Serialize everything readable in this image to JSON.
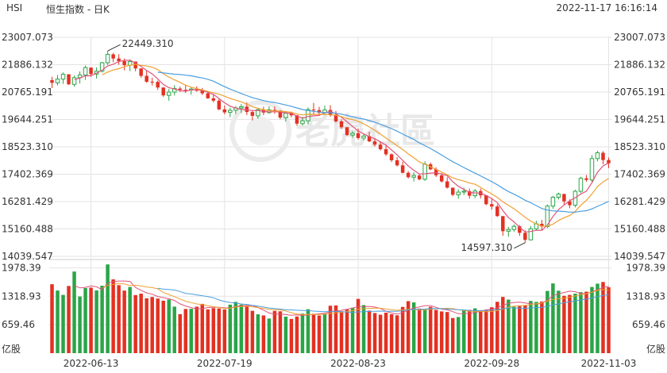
{
  "header": {
    "symbol": "HSI",
    "title": "恒生指数 - 日K",
    "timestamp": "2022-11-17 16:16:14"
  },
  "watermark": {
    "text": "老虎社區"
  },
  "colors": {
    "up": "#2aa547",
    "down": "#e33122",
    "ma5": "#e0537a",
    "ma10": "#f0a030",
    "ma20": "#4a9fe0",
    "grid": "#e3e3e3"
  },
  "chart_data": [
    {
      "type": "candlestick",
      "y_ticks": [
        "23007.073",
        "21886.132",
        "20765.191",
        "19644.251",
        "18523.310",
        "17402.369",
        "16281.429",
        "15160.488",
        "14039.547"
      ],
      "ylim": [
        14039.547,
        23007.073
      ],
      "x_ticks": [
        "2022-06-13",
        "2022-07-19",
        "2022-08-23",
        "2022-09-28",
        "2022-11-03"
      ],
      "annotations": {
        "high": "22449.310",
        "low": "14597.310"
      },
      "moving_averages": [
        "MA5",
        "MA10",
        "MA20"
      ],
      "ohlc": [
        [
          21255.76,
          21390.11,
          20930.09,
          21142.78
        ],
        [
          21142.78,
          21464.07,
          21036.74,
          21295.92
        ],
        [
          21295.92,
          21569.44,
          21101.46,
          21493.78
        ],
        [
          21493.78,
          21493.78,
          21059.58,
          21081.81
        ],
        [
          21081.81,
          21436.71,
          20985.71,
          21355.51
        ],
        [
          21355.51,
          21609.21,
          21114.85,
          21462.82
        ],
        [
          21462.82,
          21853.46,
          21262.84,
          21767.88
        ],
        [
          21767.88,
          21767.88,
          21386.23,
          21500.46
        ],
        [
          21500.46,
          21775.48,
          21317.33,
          21618.98
        ],
        [
          21618.98,
          22000.0,
          21563.42,
          21965.95
        ],
        [
          21965.95,
          22449.31,
          21875.77,
          22308.63
        ],
        [
          22308.63,
          22366.45,
          21985.04,
          22138.89
        ],
        [
          22138.89,
          22313.37,
          21884.73,
          22031.2
        ],
        [
          22031.2,
          22141.53,
          21655.5,
          21865.58
        ],
        [
          21865.58,
          22104.15,
          21621.81,
          22014.63
        ],
        [
          22014.63,
          22014.63,
          21616.7,
          21732.27
        ],
        [
          21732.27,
          21732.27,
          21351.11,
          21429.47
        ],
        [
          21429.47,
          21643.33,
          21141.49,
          21188.5
        ],
        [
          21188.5,
          21353.92,
          21034.81,
          21183.06
        ],
        [
          21183.06,
          21232.04,
          20851.46,
          20952.17
        ],
        [
          20952.17,
          20952.17,
          20566.05,
          20630.41
        ],
        [
          20630.41,
          20891.95,
          20409.67,
          20764.1
        ],
        [
          20764.1,
          21046.43,
          20628.19,
          20908.47
        ],
        [
          20908.47,
          20985.32,
          20770.04,
          20857.82
        ],
        [
          20857.82,
          21054.7,
          20733.21,
          20848.49
        ],
        [
          20848.49,
          20950.33,
          20660.1,
          20890.27
        ],
        [
          20890.27,
          21002.36,
          20779.41,
          20820.07
        ],
        [
          20820.07,
          20934.68,
          20640.7,
          20713.66
        ],
        [
          20713.66,
          20784.15,
          20486.21,
          20510.68
        ],
        [
          20510.68,
          20681.43,
          20347.84,
          20414.56
        ],
        [
          20414.56,
          20483.36,
          20019.92,
          20056.6
        ],
        [
          20056.6,
          20217.63,
          19852.86,
          19934.4
        ],
        [
          19934.4,
          20125.48,
          19738.53,
          20021.51
        ],
        [
          20021.51,
          20196.36,
          19870.0,
          20112.36
        ],
        [
          20112.36,
          20278.79,
          19906.24,
          20166.1
        ],
        [
          20166.1,
          20343.74,
          19822.07,
          19948.57
        ],
        [
          19948.57,
          20015.41,
          19605.58,
          19791.15
        ],
        [
          19791.15,
          20101.82,
          19673.19,
          20044.88
        ],
        [
          20044.88,
          20165.62,
          19817.54,
          19926.24
        ],
        [
          19926.24,
          20180.45,
          19871.02,
          20038.29
        ],
        [
          20038.29,
          20177.41,
          19880.26,
          20004.96
        ],
        [
          20004.96,
          20022.0,
          19657.75,
          19719.88
        ],
        [
          19719.88,
          19989.55,
          19565.54,
          19896.89
        ],
        [
          19896.89,
          19967.99,
          19730.59,
          19814.4
        ],
        [
          19814.4,
          19822.57,
          19389.55,
          19471.12
        ],
        [
          19471.12,
          19751.62,
          19395.64,
          19588.62
        ],
        [
          19588.62,
          20138.96,
          19437.9,
          20047.36
        ],
        [
          20047.36,
          20323.17,
          19831.81,
          20025.26
        ],
        [
          20025.26,
          20162.63,
          19786.0,
          19918.21
        ],
        [
          19918.21,
          20210.52,
          19819.85,
          20031.87
        ],
        [
          20031.87,
          20223.27,
          19752.99,
          19828.06
        ],
        [
          19828.06,
          19992.23,
          19514.78,
          19564.11
        ],
        [
          19564.11,
          19649.67,
          19256.68,
          19326.16
        ],
        [
          19326.16,
          19326.16,
          18974.15,
          19006.68
        ],
        [
          19006.68,
          19163.09,
          18898.51,
          19078.87
        ],
        [
          19078.87,
          19273.69,
          18821.33,
          18882.89
        ],
        [
          18882.89,
          19069.58,
          18777.12,
          18963.23
        ],
        [
          18963.23,
          19138.92,
          18716.4,
          18745.39
        ],
        [
          18745.39,
          18868.27,
          18535.77,
          18611.98
        ],
        [
          18611.98,
          18736.81,
          18371.24,
          18426.22
        ],
        [
          18426.22,
          18577.28,
          18148.24,
          18217.81
        ],
        [
          18217.81,
          18252.57,
          17898.61,
          17973.64
        ],
        [
          17973.64,
          18106.92,
          17713.71,
          17765.14
        ],
        [
          17765.14,
          17913.51,
          17436.82,
          17459.17
        ],
        [
          17459.17,
          17529.7,
          17225.97,
          17280.55
        ],
        [
          17280.55,
          17484.43,
          17107.73,
          17350.33
        ],
        [
          17350.33,
          17412.08,
          17149.54,
          17193.45
        ],
        [
          17193.45,
          17929.53,
          17128.94,
          17810.6
        ],
        [
          17810.6,
          17881.06,
          17570.91,
          17600.82
        ],
        [
          17600.82,
          17686.22,
          17286.31,
          17357.57
        ],
        [
          17357.57,
          17445.3,
          17064.03,
          17106.13
        ],
        [
          17106.13,
          17278.53,
          16815.01,
          16851.61
        ],
        [
          16851.61,
          16851.61,
          16501.12,
          16560.74
        ],
        [
          16560.74,
          16781.0,
          16398.95,
          16669.01
        ],
        [
          16669.01,
          16851.88,
          16544.0,
          16706.39
        ],
        [
          16706.39,
          16813.76,
          16401.34,
          16521.88
        ],
        [
          16521.88,
          16797.75,
          16420.84,
          16712.24
        ],
        [
          16712.24,
          16813.88,
          16406.64,
          16538.1
        ],
        [
          16538.1,
          16538.1,
          16130.58,
          16175.37
        ],
        [
          16175.37,
          16381.06,
          15948.36,
          16079.67
        ],
        [
          16079.67,
          16168.7,
          15656.73,
          15686.19
        ],
        [
          15686.19,
          15686.19,
          14880.38,
          15068.53
        ],
        [
          15068.53,
          15245.27,
          14844.18,
          15138.64
        ],
        [
          15138.64,
          15346.19,
          15049.75,
          15268.31
        ],
        [
          15268.31,
          15320.61,
          14878.65,
          15002.91
        ],
        [
          15002.91,
          15107.4,
          14597.31,
          14713.72
        ],
        [
          14713.72,
          15280.4,
          14692.89,
          15165.86
        ],
        [
          15165.86,
          15499.39,
          15107.34,
          15370.19
        ],
        [
          15370.19,
          15531.93,
          15110.03,
          15260.49
        ],
        [
          15260.49,
          16164.69,
          15198.27,
          16096.53
        ],
        [
          16096.53,
          16514.73,
          15986.06,
          16461.51
        ],
        [
          16461.51,
          16651.65,
          16367.44,
          16588.96
        ],
        [
          16588.96,
          16609.38,
          16163.84,
          16293.06
        ],
        [
          16293.06,
          16375.67,
          16008.1,
          16134.73
        ],
        [
          16134.73,
          16765.52,
          16041.42,
          16702.61
        ],
        [
          16702.61,
          17298.19,
          16627.06,
          17233.05
        ],
        [
          17233.05,
          17369.1,
          17091.28,
          17167.41
        ],
        [
          17167.41,
          18185.59,
          17073.42,
          18041.1
        ],
        [
          18041.1,
          18361.06,
          17926.94,
          18279.67
        ],
        [
          18279.67,
          18345.13,
          17804.35,
          17982.56
        ],
        [
          17982.56,
          18085.57,
          17651.65,
          17851.02
        ]
      ],
      "title": "",
      "xlabel": "",
      "ylabel": "",
      "grid": true
    },
    {
      "type": "bar",
      "y_ticks": [
        "1978.39",
        "1318.93",
        "659.46"
      ],
      "ylim": [
        0,
        1978.39
      ],
      "unit_label": "亿股",
      "moving_averages": [
        "MA5",
        "MA10"
      ],
      "values": [
        1597.19,
        1450.33,
        1349.61,
        1556.19,
        1890.39,
        1311.93,
        1508.15,
        1518.2,
        1454.12,
        1562.49,
        2055.06,
        1709.44,
        1575.46,
        1449.56,
        1532.97,
        1346.12,
        1378.54,
        1271.8,
        1300.49,
        1264.96,
        1215.42,
        1243.43,
        1077.56,
        903.71,
        1023.86,
        1027.02,
        1076.27,
        1141.86,
        1013.6,
        1042.89,
        1035.47,
        1011.33,
        1123.54,
        1188.14,
        1126.19,
        1096.56,
        981.11,
        899.89,
        874.03,
        801.99,
        979.05,
        969.16,
        846.27,
        792.84,
        849.42,
        916.3,
        1017.43,
        911.15,
        873.07,
        909.32,
        1098.49,
        1104.86,
        969.63,
        1008.38,
        1051.02,
        1256.98,
        1113.91,
        985.37,
        929.16,
        890.37,
        937.65,
        900.92,
        876.55,
        1071.39,
        1205.05,
        1175.27,
        1032.55,
        1023.47,
        1074.04,
        1001.84,
        966.57,
        953.15,
        813.9,
        837.06,
        1004.81,
        1001.54,
        1037.87,
        987.26,
        987.27,
        1063.0,
        1190.31,
        1302.46,
        1240.82,
        1075.6,
        1091.03,
        1104.53,
        1209.98,
        1186.71,
        1195.18,
        1441.13,
        1615.91,
        1445.88,
        1328.47,
        1349.33,
        1376.96,
        1412.36,
        1423.53,
        1533.2,
        1609.48,
        1648.14,
        1527.42
      ]
    }
  ]
}
